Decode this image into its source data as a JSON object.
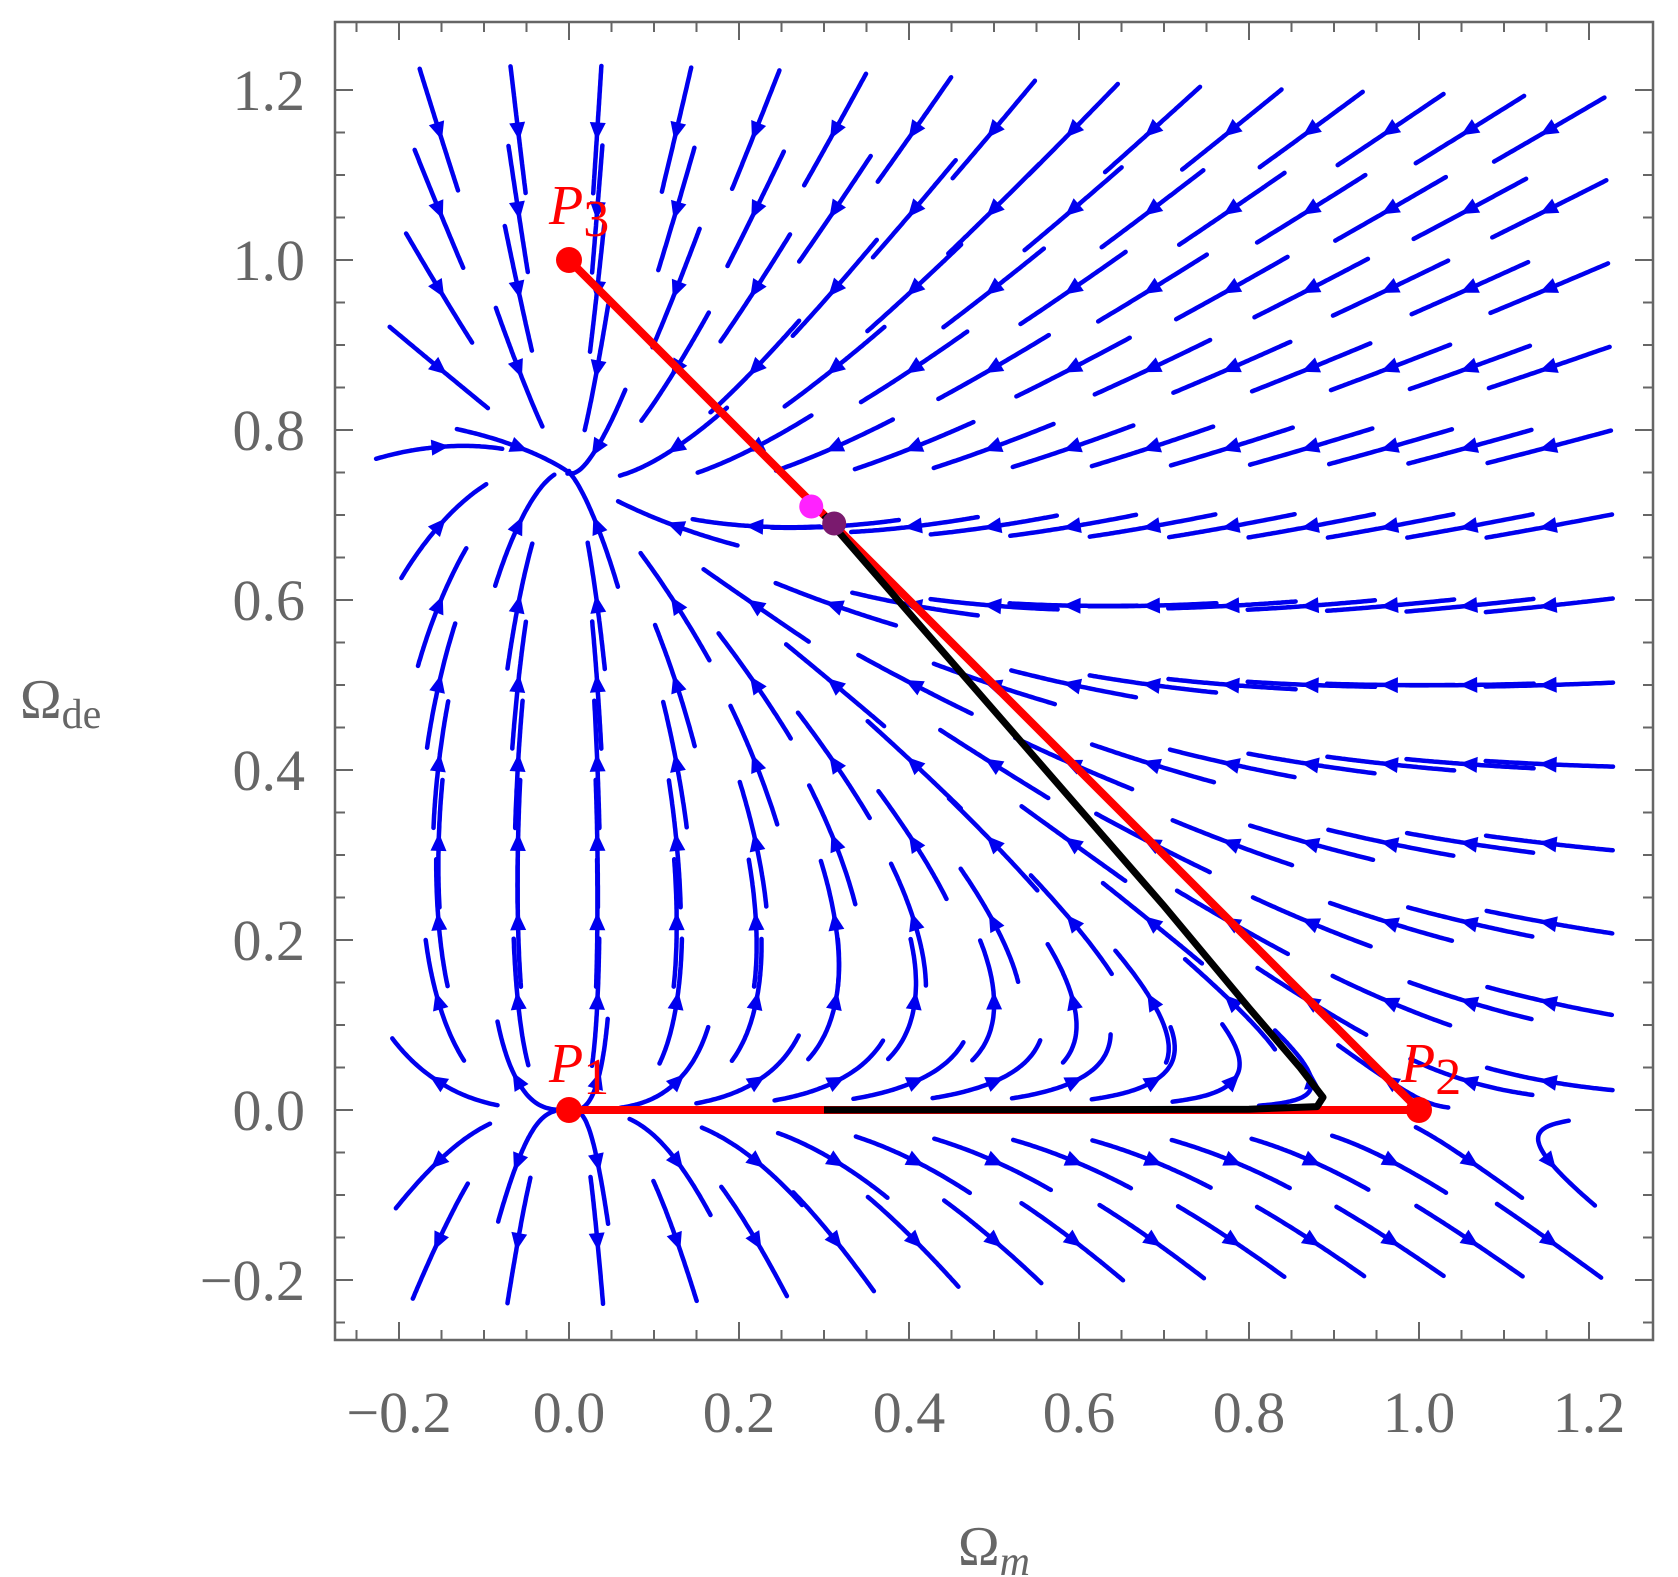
{
  "chart_data": {
    "type": "phase-portrait",
    "xlabel": {
      "main": "Ω",
      "sub": "m"
    },
    "ylabel": {
      "main": "Ω",
      "sub": "de"
    },
    "xlim": [
      -0.28,
      1.27
    ],
    "ylim": [
      -0.28,
      1.27
    ],
    "x_ticks": [
      "−0.2",
      "0.0",
      "0.2",
      "0.4",
      "0.6",
      "0.8",
      "1.0",
      "1.2"
    ],
    "x_tick_values": [
      -0.2,
      0.0,
      0.2,
      0.4,
      0.6,
      0.8,
      1.0,
      1.2
    ],
    "y_ticks": [
      "−0.2",
      "0.0",
      "0.2",
      "0.4",
      "0.6",
      "0.8",
      "1.0",
      "1.2"
    ],
    "y_tick_values": [
      -0.2,
      0.0,
      0.2,
      0.4,
      0.6,
      0.8,
      1.0,
      1.2
    ],
    "critical_points": [
      {
        "name": "P",
        "sub": "1",
        "x": 0.0,
        "y": 0.0
      },
      {
        "name": "P",
        "sub": "2",
        "x": 1.0,
        "y": 0.0
      },
      {
        "name": "P",
        "sub": "3",
        "x": 0.0,
        "y": 1.0
      }
    ],
    "boundary_segments": [
      {
        "from": [
          0.0,
          0.0
        ],
        "to": [
          1.0,
          0.0
        ]
      },
      {
        "from": [
          1.0,
          0.0
        ],
        "to": [
          0.0,
          1.0
        ]
      }
    ],
    "trajectory": [
      [
        0.3,
        0.7
      ],
      [
        0.4,
        0.585
      ],
      [
        0.5,
        0.47
      ],
      [
        0.6,
        0.355
      ],
      [
        0.7,
        0.24
      ],
      [
        0.8,
        0.12
      ],
      [
        0.86,
        0.05
      ],
      [
        0.887,
        0.015
      ],
      [
        0.88,
        0.004
      ],
      [
        0.8,
        0.001
      ],
      [
        0.6,
        0.0003
      ],
      [
        0.3,
        0.0001
      ]
    ],
    "markers": [
      {
        "x": 0.285,
        "y": 0.71,
        "color": "#ff22ff"
      },
      {
        "x": 0.312,
        "y": 0.69,
        "color": "#7a1a6e"
      }
    ],
    "colors": {
      "stream": "#0000ee",
      "boundary": "#ff0000",
      "trajectory": "#000000",
      "frame": "#666666",
      "critical": "#ff0000"
    },
    "stream_grid": {
      "x_range": [
        -0.2,
        1.2
      ],
      "y_range": [
        -0.2,
        1.2
      ]
    }
  }
}
